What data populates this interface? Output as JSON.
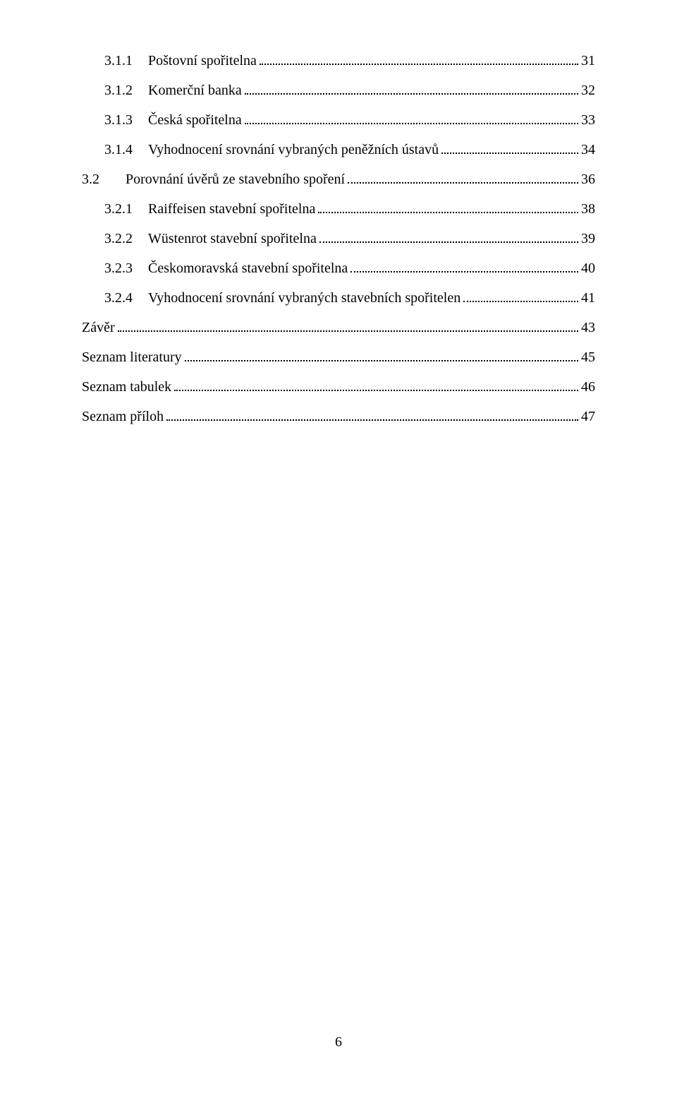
{
  "toc": {
    "entries": [
      {
        "indent": true,
        "num": "3.1.1",
        "label": "Poštovní spořitelna",
        "page": "31"
      },
      {
        "indent": true,
        "num": "3.1.2",
        "label": "Komerční banka",
        "page": "32"
      },
      {
        "indent": true,
        "num": "3.1.3",
        "label": "Česká spořitelna",
        "page": "33"
      },
      {
        "indent": true,
        "num": "3.1.4",
        "label": "Vyhodnocení srovnání vybraných peněžních ústavů",
        "page": "34"
      },
      {
        "indent": false,
        "num": "3.2",
        "label": "Porovnání úvěrů ze stavebního spoření",
        "page": "36"
      },
      {
        "indent": true,
        "num": "3.2.1",
        "label": "Raiffeisen stavební spořitelna",
        "page": "38"
      },
      {
        "indent": true,
        "num": "3.2.2",
        "label": "Wüstenrot stavební spořitelna",
        "page": "39"
      },
      {
        "indent": true,
        "num": "3.2.3",
        "label": "Českomoravská stavební spořitelna",
        "page": "40"
      },
      {
        "indent": true,
        "num": "3.2.4",
        "label": "Vyhodnocení srovnání vybraných stavebních spořitelen",
        "page": "41"
      },
      {
        "indent": false,
        "num": "",
        "label": "Závěr",
        "page": "43"
      },
      {
        "indent": false,
        "num": "",
        "label": "Seznam literatury",
        "page": "45"
      },
      {
        "indent": false,
        "num": "",
        "label": "Seznam tabulek",
        "page": "46"
      },
      {
        "indent": false,
        "num": "",
        "label": "Seznam příloh",
        "page": "47"
      }
    ]
  },
  "page_number": "6",
  "style": {
    "font_family": "Times New Roman",
    "font_size_pt": 15,
    "text_color": "#000000",
    "background_color": "#ffffff",
    "leader_style": "dotted"
  }
}
